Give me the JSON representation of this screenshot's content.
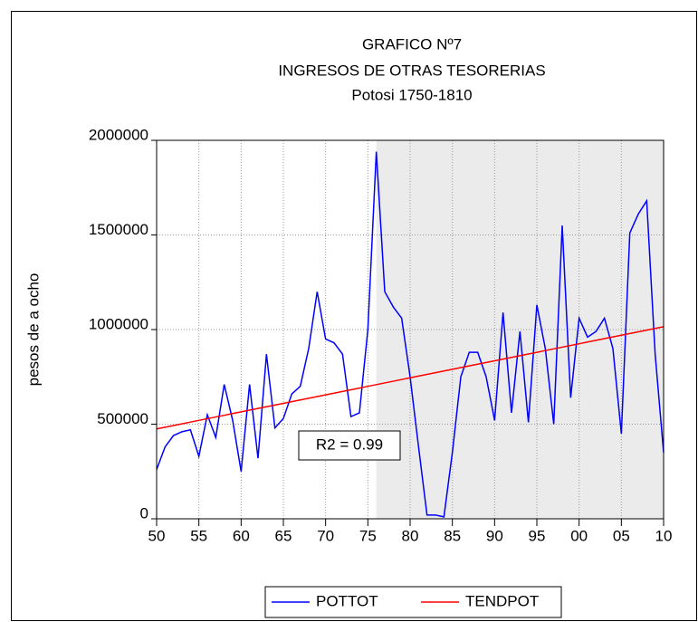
{
  "chart_data": {
    "type": "line",
    "title": "GRAFICO Nº7",
    "subtitle": "INGRESOS DE OTRAS TESORERIAS",
    "subtitle2": "Potosi 1750-1810",
    "y_label": "pesos de a ocho",
    "annotation": "R2 = 0.99",
    "shaded_range": [
      1776,
      1810
    ],
    "x": [
      1750,
      1751,
      1752,
      1753,
      1754,
      1755,
      1756,
      1757,
      1758,
      1759,
      1760,
      1761,
      1762,
      1763,
      1764,
      1765,
      1766,
      1767,
      1768,
      1769,
      1770,
      1771,
      1772,
      1773,
      1774,
      1775,
      1776,
      1777,
      1778,
      1779,
      1780,
      1781,
      1782,
      1783,
      1784,
      1785,
      1786,
      1787,
      1788,
      1789,
      1790,
      1791,
      1792,
      1793,
      1794,
      1795,
      1796,
      1797,
      1798,
      1799,
      1800,
      1801,
      1802,
      1803,
      1804,
      1805,
      1806,
      1807,
      1808,
      1809,
      1810
    ],
    "series": [
      {
        "name": "POTTOT",
        "color": "#0000ff",
        "values": [
          260000,
          380000,
          440000,
          460000,
          470000,
          330000,
          550000,
          430000,
          710000,
          520000,
          250000,
          710000,
          320000,
          870000,
          480000,
          530000,
          660000,
          700000,
          900000,
          1200000,
          950000,
          930000,
          870000,
          540000,
          560000,
          1000000,
          1940000,
          1200000,
          1120000,
          1060000,
          750000,
          380000,
          20000,
          20000,
          10000,
          350000,
          750000,
          880000,
          880000,
          750000,
          520000,
          1090000,
          560000,
          990000,
          510000,
          1130000,
          900000,
          500000,
          1550000,
          640000,
          1060000,
          960000,
          990000,
          1060000,
          900000,
          450000,
          1510000,
          1610000,
          1680000,
          870000,
          350000
        ]
      },
      {
        "name": "TENDPOT",
        "color": "#ff0000",
        "values": [
          475000,
          484000,
          493000,
          502000,
          511000,
          520000,
          529000,
          538000,
          547000,
          556000,
          565000,
          574000,
          583000,
          592000,
          601000,
          610000,
          619000,
          628000,
          637000,
          646000,
          655000,
          664000,
          673000,
          682000,
          691000,
          700000,
          709000,
          718000,
          727000,
          736000,
          745000,
          754000,
          763000,
          772000,
          781000,
          790000,
          799000,
          808000,
          817000,
          826000,
          835000,
          844000,
          853000,
          862000,
          871000,
          880000,
          889000,
          898000,
          907000,
          916000,
          925000,
          934000,
          943000,
          952000,
          961000,
          970000,
          979000,
          988000,
          997000,
          1006000,
          1015000
        ]
      }
    ],
    "xlim": [
      1750,
      1810
    ],
    "xticks": [
      {
        "value": 1750,
        "label": "50"
      },
      {
        "value": 1755,
        "label": "55"
      },
      {
        "value": 1760,
        "label": "60"
      },
      {
        "value": 1765,
        "label": "65"
      },
      {
        "value": 1770,
        "label": "70"
      },
      {
        "value": 1775,
        "label": "75"
      },
      {
        "value": 1780,
        "label": "80"
      },
      {
        "value": 1785,
        "label": "85"
      },
      {
        "value": 1790,
        "label": "90"
      },
      {
        "value": 1795,
        "label": "95"
      },
      {
        "value": 1800,
        "label": "00"
      },
      {
        "value": 1805,
        "label": "05"
      },
      {
        "value": 1810,
        "label": "10"
      }
    ],
    "ylim": [
      0,
      2000000
    ],
    "yticks": [
      0,
      500000,
      1000000,
      1500000,
      2000000
    ],
    "grid": true,
    "legend": "bottom"
  }
}
